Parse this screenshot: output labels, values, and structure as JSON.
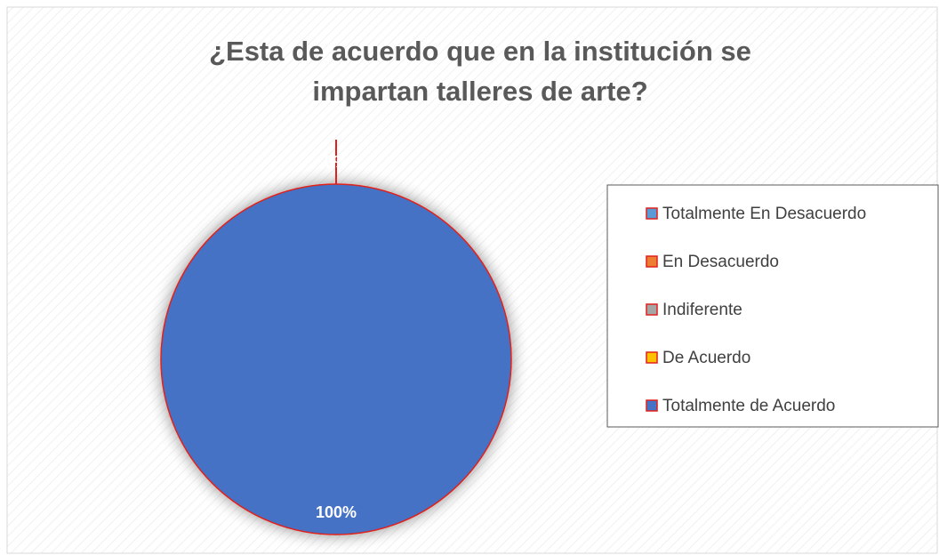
{
  "chart_data": {
    "type": "pie",
    "title": "¿Esta de acuerdo que en la institución se impartan talleres de arte?",
    "categories": [
      "Totalmente En Desacuerdo",
      "En Desacuerdo",
      "Indiferente",
      "De Acuerdo",
      "Totalmente de Acuerdo"
    ],
    "values": [
      0,
      0,
      0,
      0,
      100
    ],
    "value_labels": [
      "0%",
      "0%",
      "0%",
      "0%",
      "100%"
    ],
    "colors": [
      "#5b9bd5",
      "#ed7d31",
      "#a5a5a5",
      "#ffc000",
      "#4472c4"
    ],
    "edge_color": "#e0201b",
    "legend": "right"
  }
}
